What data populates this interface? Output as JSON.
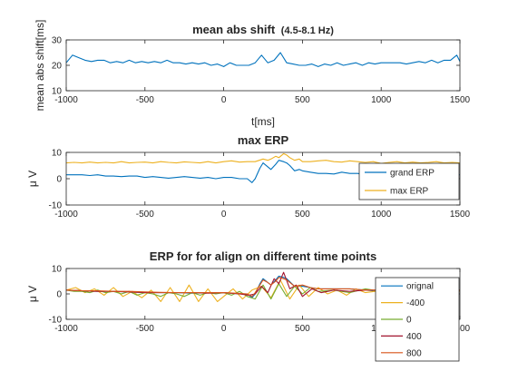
{
  "figure": {
    "background": "#ffffff"
  },
  "chart_data": [
    {
      "type": "line",
      "title": "mean abs shift",
      "title_suffix": "(4.5-8.1 Hz)",
      "xlabel": "t[ms]",
      "ylabel": "mean abs shift[ms]",
      "xlim": [
        -1000,
        1500
      ],
      "ylim": [
        10,
        30
      ],
      "xticks": [
        -1000,
        -500,
        0,
        500,
        1000,
        1500
      ],
      "yticks": [
        10,
        20,
        30
      ],
      "legend": null,
      "series": [
        {
          "color": "#0072BD",
          "x": [
            -1000,
            -960,
            -920,
            -880,
            -840,
            -800,
            -760,
            -720,
            -680,
            -640,
            -600,
            -560,
            -520,
            -480,
            -440,
            -400,
            -360,
            -320,
            -280,
            -240,
            -200,
            -160,
            -120,
            -80,
            -40,
            0,
            40,
            80,
            120,
            160,
            200,
            240,
            280,
            320,
            360,
            400,
            440,
            480,
            520,
            560,
            600,
            640,
            680,
            720,
            760,
            800,
            840,
            880,
            920,
            960,
            1000,
            1040,
            1080,
            1120,
            1160,
            1200,
            1240,
            1280,
            1320,
            1360,
            1400,
            1440,
            1480,
            1500
          ],
          "y": [
            21,
            24,
            23,
            22,
            21.5,
            22,
            22,
            21,
            21.5,
            21,
            22,
            21,
            21.5,
            21,
            21.5,
            21,
            22,
            21,
            21,
            20.5,
            21,
            20.5,
            21,
            20,
            20.5,
            19.5,
            21,
            20,
            20,
            20,
            21,
            24,
            21,
            22,
            25,
            21,
            20.5,
            20,
            20,
            20.5,
            19.5,
            20.5,
            20,
            21,
            20,
            20.5,
            21,
            20,
            21,
            20.5,
            21,
            21,
            21,
            21,
            20.5,
            21,
            21.5,
            21,
            22,
            21,
            22,
            22,
            24,
            21.5
          ]
        }
      ]
    },
    {
      "type": "line",
      "title": "max ERP",
      "xlabel": "",
      "ylabel": "μ V",
      "xlim": [
        -1000,
        1500
      ],
      "ylim": [
        -10,
        10
      ],
      "xticks": [
        -1000,
        -500,
        0,
        500,
        1000,
        1500
      ],
      "yticks": [
        -10,
        0,
        10
      ],
      "legend": "right",
      "series": [
        {
          "name": "grand ERP",
          "color": "#0072BD",
          "x": [
            -1000,
            -950,
            -900,
            -850,
            -800,
            -750,
            -700,
            -650,
            -600,
            -550,
            -500,
            -450,
            -400,
            -350,
            -300,
            -250,
            -200,
            -150,
            -100,
            -50,
            0,
            50,
            100,
            150,
            180,
            200,
            230,
            250,
            280,
            300,
            330,
            350,
            380,
            400,
            420,
            450,
            480,
            500,
            550,
            600,
            650,
            700,
            750,
            800,
            850,
            900,
            950,
            1000,
            1050,
            1100,
            1150,
            1200,
            1250,
            1300,
            1350,
            1400,
            1450,
            1500
          ],
          "y": [
            1.5,
            1.5,
            1.5,
            1.2,
            1.5,
            1,
            1,
            0.8,
            1,
            1,
            0.5,
            0.8,
            0.5,
            0.2,
            0.5,
            0.8,
            0.5,
            0.2,
            0.5,
            0,
            0.5,
            0.5,
            0,
            0,
            -1.5,
            0,
            4,
            6,
            4.5,
            3.5,
            5.5,
            7,
            6.5,
            6,
            5,
            3,
            3.5,
            3,
            2.5,
            2,
            2,
            1.8,
            2.5,
            2,
            2,
            1.5,
            1.5,
            0.5,
            1,
            1.5,
            1,
            1.5,
            1.5,
            1,
            2,
            1,
            1.5,
            1.5
          ]
        },
        {
          "name": "max ERP",
          "color": "#EDB120",
          "x": [
            -1000,
            -950,
            -900,
            -850,
            -800,
            -750,
            -700,
            -650,
            -600,
            -550,
            -500,
            -450,
            -400,
            -350,
            -300,
            -250,
            -200,
            -150,
            -100,
            -50,
            0,
            50,
            100,
            150,
            200,
            250,
            280,
            300,
            330,
            350,
            380,
            400,
            420,
            450,
            480,
            500,
            550,
            600,
            650,
            700,
            750,
            800,
            850,
            900,
            950,
            1000,
            1050,
            1100,
            1150,
            1200,
            1250,
            1300,
            1350,
            1400,
            1450,
            1500
          ],
          "y": [
            6,
            6.2,
            6,
            6.3,
            6,
            6.2,
            6,
            6.5,
            6,
            6.2,
            6.3,
            6,
            6.5,
            6.2,
            6,
            6.4,
            6.2,
            6,
            6.5,
            6,
            6.5,
            6.8,
            6.3,
            6.5,
            6.5,
            7.5,
            7,
            7.5,
            8.5,
            8,
            9.5,
            9,
            8,
            7,
            7.5,
            6.5,
            6.5,
            6.8,
            7,
            6.5,
            6.3,
            6.8,
            6.5,
            6.2,
            6.5,
            5.8,
            6.2,
            6.5,
            6,
            6.3,
            6,
            6.2,
            6.5,
            6,
            6.2,
            6
          ]
        }
      ]
    },
    {
      "type": "line",
      "title": "ERP for for align on different time points",
      "xlabel": "",
      "ylabel": "μ V",
      "xlim": [
        -1000,
        1500
      ],
      "ylim": [
        -10,
        10
      ],
      "xticks": [
        -1000,
        -500,
        0,
        500,
        1000,
        1500
      ],
      "yticks": [
        -10,
        0,
        10
      ],
      "legend": "bottom-right",
      "series": [
        {
          "name": "orignal",
          "color": "#0072BD",
          "x": [
            -1000,
            -900,
            -800,
            -700,
            -600,
            -500,
            -400,
            -300,
            -200,
            -100,
            0,
            100,
            150,
            180,
            200,
            230,
            250,
            280,
            300,
            330,
            350,
            380,
            400,
            450,
            500,
            550,
            600,
            700,
            800,
            900,
            1000,
            1100,
            1200,
            1300,
            1400,
            1500
          ],
          "y": [
            1.5,
            1.2,
            1,
            1,
            0.8,
            0.5,
            0.5,
            0.5,
            0.3,
            0.5,
            0.5,
            0,
            0,
            -1.5,
            0,
            4,
            6,
            4.5,
            3.5,
            5.5,
            7,
            6.5,
            6,
            3,
            3,
            2.5,
            2,
            2,
            2,
            1.5,
            1,
            1.5,
            1.5,
            1.5,
            1.5,
            1.5
          ]
        },
        {
          "name": "-400",
          "color": "#EDB120",
          "x": [
            -1000,
            -940,
            -880,
            -820,
            -760,
            -700,
            -640,
            -580,
            -520,
            -460,
            -400,
            -340,
            -280,
            -220,
            -160,
            -100,
            -40,
            0,
            60,
            120,
            180,
            240,
            300,
            360,
            420,
            480,
            540,
            600,
            660,
            720,
            780,
            840,
            900,
            960,
            1020,
            1080,
            1140,
            1200,
            1260,
            1320,
            1380,
            1440,
            1500
          ],
          "y": [
            1.5,
            2.5,
            0.5,
            2,
            -0.5,
            2.5,
            -1,
            1,
            -1.5,
            1.5,
            -3,
            2.5,
            -3,
            3.5,
            -3,
            2,
            -3,
            -1,
            2,
            -2,
            1.5,
            3,
            -1.5,
            5.5,
            -2,
            3.5,
            -1,
            2.5,
            0,
            1.5,
            -0.5,
            2,
            0.5,
            1,
            -0.5,
            2,
            0.5,
            1.5,
            0,
            2,
            0.5,
            1.5,
            1
          ]
        },
        {
          "name": "0",
          "color": "#77AC30",
          "x": [
            -1000,
            -950,
            -900,
            -850,
            -800,
            -750,
            -700,
            -650,
            -600,
            -550,
            -500,
            -450,
            -400,
            -350,
            -300,
            -250,
            -200,
            -150,
            -100,
            -50,
            0,
            50,
            100,
            150,
            200,
            250,
            300,
            350,
            400,
            450,
            500,
            550,
            600,
            700,
            800,
            900,
            1000,
            1100,
            1200,
            1300,
            1400,
            1500
          ],
          "y": [
            1.5,
            1,
            1,
            0.5,
            1.5,
            0.5,
            1,
            0,
            1,
            -0.5,
            0.5,
            0,
            -1,
            0.5,
            0,
            -1,
            0.5,
            -0.5,
            0.5,
            0,
            0.5,
            -0.5,
            1,
            -1,
            -2,
            3.5,
            -2,
            4,
            -1,
            3,
            0,
            2.5,
            1,
            1.5,
            0.5,
            2,
            1,
            1.5,
            1,
            2,
            1.5,
            1.5
          ]
        },
        {
          "name": "400",
          "color": "#A2142F",
          "x": [
            -1000,
            -900,
            -800,
            -700,
            -600,
            -500,
            -400,
            -300,
            -200,
            -100,
            0,
            100,
            160,
            200,
            240,
            280,
            320,
            350,
            380,
            420,
            460,
            500,
            560,
            620,
            700,
            800,
            900,
            1000,
            1100,
            1200,
            1300,
            1400,
            1500
          ],
          "y": [
            1.5,
            1.2,
            1,
            1,
            0.8,
            0.5,
            0.5,
            0.5,
            0.5,
            0.3,
            0.5,
            0,
            -0.5,
            0,
            3,
            0.5,
            6,
            4,
            8.5,
            2,
            3.5,
            -1,
            2,
            0.5,
            1.5,
            1,
            1.5,
            1.5,
            1,
            1.5,
            1,
            1.5,
            1.5
          ]
        },
        {
          "name": "800",
          "color": "#D95319",
          "x": [
            -1000,
            -900,
            -800,
            -700,
            -600,
            -500,
            -400,
            -300,
            -200,
            -100,
            0,
            100,
            150,
            180,
            200,
            230,
            250,
            280,
            300,
            330,
            350,
            380,
            400,
            450,
            500,
            550,
            600,
            700,
            800,
            900,
            1000,
            1100,
            1200,
            1300,
            1400,
            1500
          ],
          "y": [
            1.5,
            1.3,
            1.2,
            1,
            1,
            0.8,
            0.6,
            0.5,
            0.5,
            0.5,
            0.5,
            0.2,
            0,
            -1,
            0.5,
            3.5,
            5.5,
            4.5,
            3.5,
            5,
            6.5,
            6,
            5.5,
            3,
            3.5,
            2.5,
            2,
            2,
            2,
            1.5,
            1.5,
            1.5,
            1.5,
            1.5,
            1.5,
            1.5
          ]
        }
      ]
    }
  ]
}
